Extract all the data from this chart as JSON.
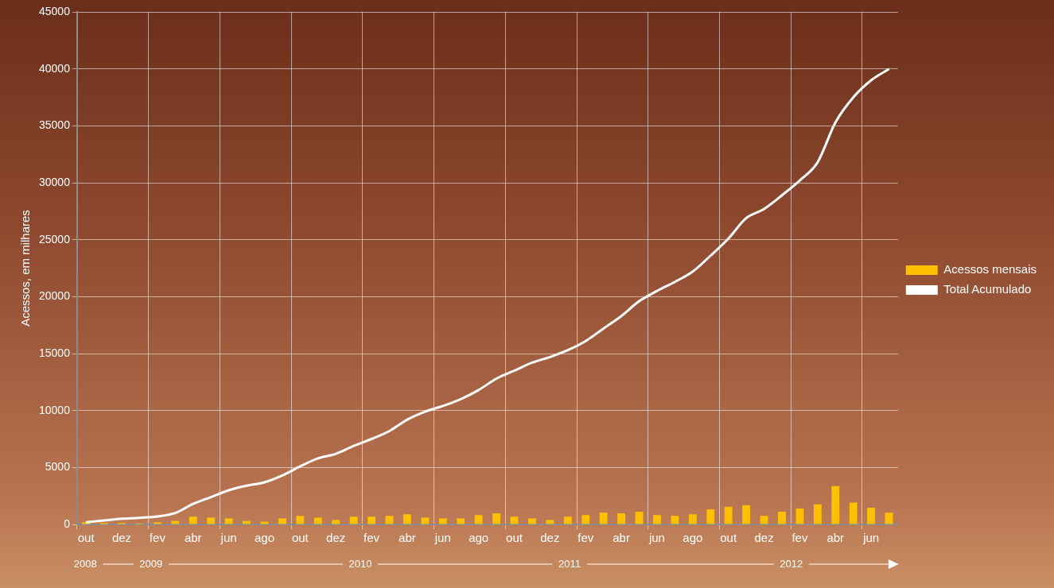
{
  "chart_data": {
    "type": "bar",
    "ylabel": "Acessos, em milhares",
    "categories": [
      "out",
      null,
      "dez",
      null,
      "fev",
      null,
      "abr",
      null,
      "jun",
      null,
      "ago",
      null,
      "out",
      null,
      "dez",
      null,
      "fev",
      null,
      "abr",
      null,
      "jun",
      null,
      "ago",
      null,
      "out",
      null,
      "dez",
      null,
      "fev",
      null,
      "abr",
      null,
      "jun",
      null,
      "ago",
      null,
      "out",
      null,
      "dez",
      null,
      "fev",
      null,
      "abr",
      null,
      "jun",
      null
    ],
    "series": [
      {
        "name": "Acessos mensais",
        "color": "#ffc000",
        "values": [
          200,
          120,
          120,
          80,
          170,
          310,
          680,
          600,
          530,
          310,
          240,
          530,
          750,
          600,
          390,
          680,
          680,
          750,
          890,
          600,
          530,
          530,
          820,
          970,
          680,
          530,
          390,
          680,
          820,
          1040,
          970,
          1110,
          820,
          750,
          890,
          1330,
          1550,
          1690,
          750,
          1110,
          1400,
          1760,
          3360,
          1910,
          1470,
          1040
        ]
      },
      {
        "name": "Total Acumulado",
        "type": "line",
        "color": "#ffffff",
        "values": [
          200,
          350,
          500,
          580,
          700,
          1000,
          1800,
          2400,
          3000,
          3400,
          3700,
          4300,
          5100,
          5800,
          6200,
          6900,
          7500,
          8200,
          9200,
          9900,
          10400,
          11000,
          11800,
          12800,
          13500,
          14200,
          14700,
          15300,
          16100,
          17200,
          18300,
          19600,
          20500,
          21300,
          22200,
          23600,
          25100,
          26900,
          27700,
          28900,
          30200,
          31800,
          35300,
          37500,
          39000,
          40000
        ]
      }
    ],
    "ylim": [
      0,
      45000
    ],
    "yticks": [
      0,
      5000,
      10000,
      15000,
      20000,
      25000,
      30000,
      35000,
      40000,
      45000
    ],
    "grid": true,
    "legend": "right",
    "marker": "none",
    "annotations": [
      "2008",
      "2009",
      "2010",
      "2011",
      "2012"
    ]
  }
}
